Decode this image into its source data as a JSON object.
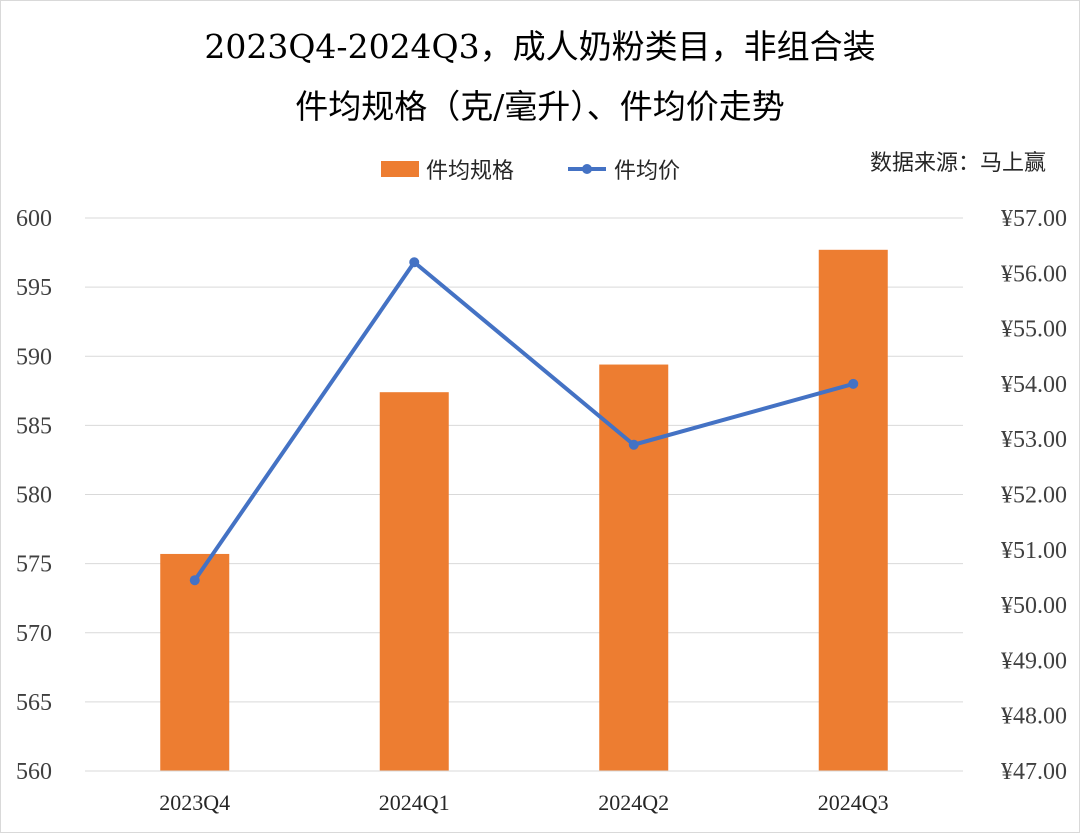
{
  "chart_data": {
    "type": "bar",
    "title": "2023Q4-2024Q3，成人奶粉类目，非组合装",
    "subtitle": "件均规格（克/毫升）、件均价走势",
    "source": "数据来源：马上赢",
    "categories": [
      "2023Q4",
      "2024Q1",
      "2024Q2",
      "2024Q3"
    ],
    "series": [
      {
        "name": "件均规格",
        "type": "bar",
        "axis": "left",
        "color": "#ED7D31",
        "values": [
          575.7,
          587.4,
          589.4,
          597.7
        ]
      },
      {
        "name": "件均价",
        "type": "line",
        "axis": "right",
        "color": "#4472C4",
        "values": [
          50.45,
          56.2,
          52.9,
          54.0
        ]
      }
    ],
    "y_left": {
      "min": 560,
      "max": 600,
      "step": 5,
      "ticks": [
        "560",
        "565",
        "570",
        "575",
        "580",
        "585",
        "590",
        "595",
        "600"
      ]
    },
    "y_right": {
      "min": 47,
      "max": 57,
      "step": 1,
      "ticks": [
        "¥47.00",
        "¥48.00",
        "¥49.00",
        "¥50.00",
        "¥51.00",
        "¥52.00",
        "¥53.00",
        "¥54.00",
        "¥55.00",
        "¥56.00",
        "¥57.00"
      ]
    },
    "grid": true,
    "legend_position": "top"
  }
}
